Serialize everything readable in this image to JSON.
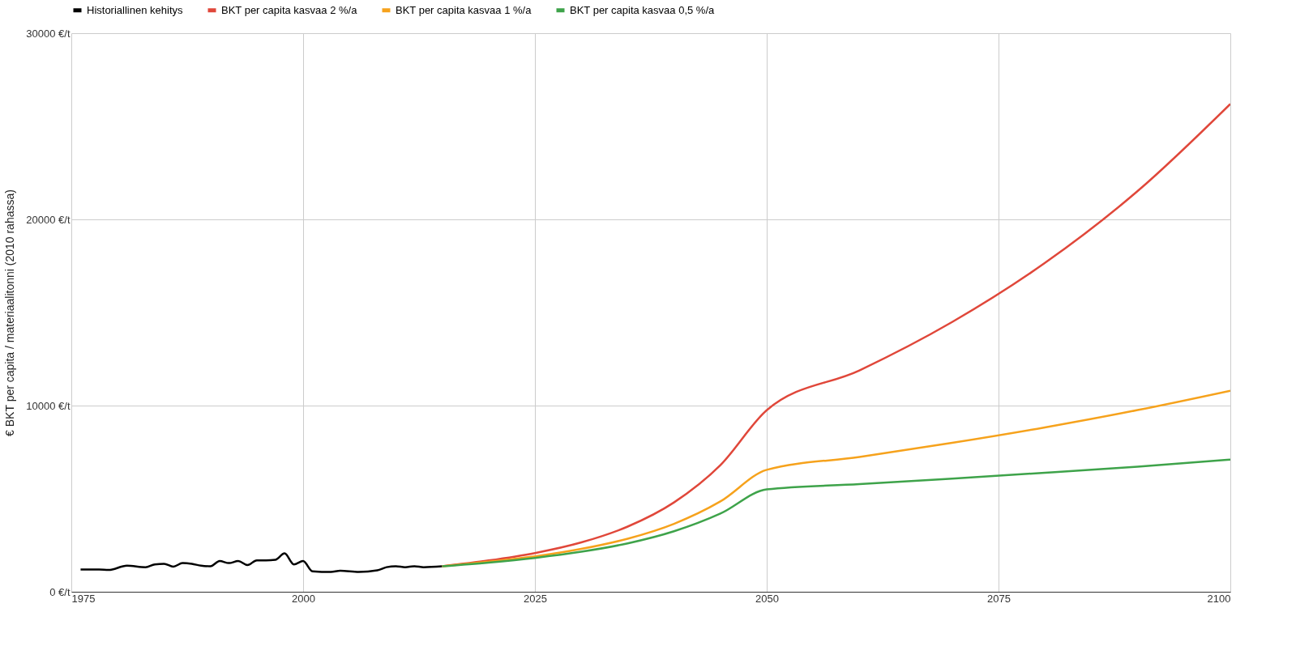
{
  "chart_data": {
    "type": "line",
    "ylabel": "€ BKT per capita / materiaalitonni (2010 rahassa)",
    "xlim": [
      1975,
      2100
    ],
    "xticks": [
      1975,
      2000,
      2025,
      2050,
      2075,
      2100
    ],
    "ylim": [
      0,
      30000
    ],
    "yticks": [
      {
        "value": 0,
        "label": "0 €/t"
      },
      {
        "value": 10000,
        "label": "10000 €/t"
      },
      {
        "value": 20000,
        "label": "20000 €/t"
      },
      {
        "value": 30000,
        "label": "30000 €/t"
      }
    ],
    "grid": true,
    "legend": "top",
    "marker": "none",
    "line_style": "solid",
    "series": [
      {
        "name": "Historiallinen kehitys",
        "color": "#000000",
        "x": [
          1976,
          1978,
          1979,
          1981,
          1983,
          1984,
          1985,
          1986,
          1987,
          1988,
          1989,
          1990,
          1991,
          1992,
          1993,
          1994,
          1995,
          1996,
          1997,
          1998,
          1999,
          2000,
          2001,
          2003,
          2004,
          2006,
          2008,
          2009,
          2010,
          2011,
          2012,
          2013,
          2015
        ],
        "values": [
          1200,
          1200,
          1170,
          1400,
          1320,
          1470,
          1500,
          1350,
          1540,
          1500,
          1400,
          1370,
          1650,
          1540,
          1650,
          1430,
          1690,
          1690,
          1720,
          2060,
          1470,
          1650,
          1100,
          1060,
          1130,
          1060,
          1150,
          1320,
          1370,
          1320,
          1370,
          1320,
          1370
        ]
      },
      {
        "name": "BKT per capita kasvaa 2 %/a",
        "color": "#e0473a",
        "x": [
          2015,
          2020,
          2025,
          2030,
          2035,
          2040,
          2045,
          2050,
          2060,
          2070,
          2080,
          2090,
          2100
        ],
        "values": [
          1370,
          1680,
          2080,
          2650,
          3500,
          4800,
          6800,
          9750,
          11890,
          14490,
          17660,
          21520,
          26200
        ]
      },
      {
        "name": "BKT per capita kasvaa 1 %/a",
        "color": "#f6a21c",
        "x": [
          2015,
          2020,
          2025,
          2030,
          2035,
          2040,
          2045,
          2050,
          2060,
          2070,
          2080,
          2090,
          2100
        ],
        "values": [
          1370,
          1620,
          1900,
          2300,
          2850,
          3650,
          4850,
          6550,
          7240,
          8000,
          8830,
          9760,
          10800
        ]
      },
      {
        "name": "BKT per capita kasvaa 0,5 %/a",
        "color": "#3ea34a",
        "x": [
          2015,
          2020,
          2025,
          2030,
          2035,
          2040,
          2045,
          2050,
          2060,
          2070,
          2080,
          2090,
          2100
        ],
        "values": [
          1370,
          1570,
          1820,
          2150,
          2600,
          3250,
          4200,
          5500,
          5780,
          6080,
          6390,
          6720,
          7100
        ]
      }
    ]
  }
}
